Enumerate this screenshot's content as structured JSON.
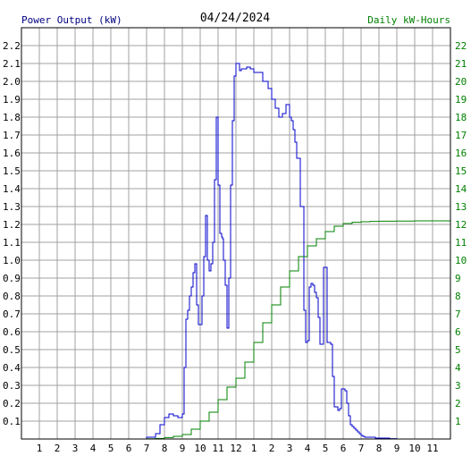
{
  "chart_data": {
    "type": "line",
    "title": "04/24/2024",
    "left_axis_label": "Power Output (kW)",
    "right_axis_label": "Daily kW-Hours",
    "x_ticks": [
      "1",
      "2",
      "3",
      "4",
      "5",
      "6",
      "7",
      "8",
      "9",
      "10",
      "11",
      "12",
      "1",
      "2",
      "3",
      "4",
      "5",
      "6",
      "7",
      "8",
      "9",
      "10",
      "11"
    ],
    "left_ticks": [
      "0.1",
      "0.2",
      "0.3",
      "0.4",
      "0.5",
      "0.6",
      "0.7",
      "0.8",
      "0.9",
      "1.0",
      "1.1",
      "1.2",
      "1.3",
      "1.4",
      "1.5",
      "1.6",
      "1.7",
      "1.8",
      "1.9",
      "2.0",
      "2.1",
      "2.2"
    ],
    "right_ticks": [
      "1",
      "2",
      "3",
      "4",
      "5",
      "6",
      "7",
      "8",
      "9",
      "10",
      "11",
      "12",
      "13",
      "14",
      "15",
      "16",
      "17",
      "18",
      "19",
      "20",
      "21",
      "22"
    ],
    "x_range_hours": [
      0,
      24
    ],
    "left_ylim": [
      0,
      2.3
    ],
    "right_ylim": [
      0,
      23
    ],
    "grid": true,
    "colors": {
      "power": "#0000cc",
      "energy": "#008000",
      "grid": "#a0a0a0",
      "left_text": "#000080",
      "right_text": "#008000"
    },
    "series": [
      {
        "name": "Power Output (kW)",
        "axis": "left",
        "x_hours": [
          0,
          6.7,
          7.0,
          7.5,
          7.75,
          8.0,
          8.25,
          8.5,
          8.75,
          9.0,
          9.1,
          9.2,
          9.3,
          9.4,
          9.5,
          9.6,
          9.7,
          9.8,
          9.9,
          10.0,
          10.1,
          10.2,
          10.3,
          10.4,
          10.5,
          10.6,
          10.7,
          10.8,
          10.9,
          11.0,
          11.1,
          11.2,
          11.25,
          11.3,
          11.4,
          11.5,
          11.6,
          11.7,
          11.8,
          11.9,
          12.0,
          12.1,
          12.2,
          12.3,
          12.4,
          12.5,
          12.6,
          12.8,
          13.0,
          13.5,
          13.8,
          14.0,
          14.2,
          14.4,
          14.6,
          14.8,
          15.0,
          15.1,
          15.2,
          15.3,
          15.4,
          15.6,
          15.8,
          15.9,
          16.0,
          16.1,
          16.2,
          16.3,
          16.4,
          16.5,
          16.6,
          16.7,
          16.8,
          16.9,
          17.0,
          17.1,
          17.2,
          17.3,
          17.4,
          17.5,
          17.6,
          17.7,
          17.8,
          17.9,
          18.0,
          18.1,
          18.2,
          18.3,
          18.4,
          18.5,
          18.6,
          18.7,
          18.8,
          18.9,
          19.0,
          19.1,
          19.2,
          19.4,
          19.6,
          19.8,
          20.0,
          20.3,
          20.6,
          21.0,
          21.3,
          21.6,
          22.0,
          24
        ],
        "values": [
          0,
          0.0,
          0.01,
          0.03,
          0.08,
          0.12,
          0.14,
          0.13,
          0.12,
          0.14,
          0.4,
          0.67,
          0.72,
          0.8,
          0.85,
          0.93,
          0.98,
          0.75,
          0.64,
          0.64,
          0.8,
          1.02,
          1.25,
          1.0,
          0.94,
          0.98,
          1.1,
          1.45,
          1.8,
          1.42,
          1.15,
          1.13,
          1.12,
          1.0,
          0.86,
          0.62,
          0.9,
          1.42,
          1.78,
          2.03,
          2.1,
          2.1,
          2.06,
          2.07,
          2.07,
          2.07,
          2.08,
          2.07,
          2.05,
          2.0,
          1.96,
          1.9,
          1.85,
          1.8,
          1.82,
          1.87,
          1.8,
          1.78,
          1.73,
          1.66,
          1.57,
          1.3,
          0.72,
          0.54,
          0.55,
          0.85,
          0.87,
          0.86,
          0.82,
          0.79,
          0.68,
          0.53,
          0.53,
          0.96,
          0.96,
          0.54,
          0.54,
          0.53,
          0.35,
          0.18,
          0.18,
          0.16,
          0.17,
          0.28,
          0.28,
          0.27,
          0.2,
          0.13,
          0.08,
          0.07,
          0.06,
          0.05,
          0.04,
          0.03,
          0.02,
          0.015,
          0.01,
          0.01,
          0.01,
          0.005,
          0.005,
          0.005,
          0.002,
          0.0,
          0.0,
          0.0,
          0.0,
          0.0
        ]
      },
      {
        "name": "Daily kW-Hours",
        "axis": "right",
        "x_hours": [
          0,
          6.5,
          7.0,
          7.5,
          8.0,
          8.5,
          9.0,
          9.5,
          10.0,
          10.5,
          11.0,
          11.5,
          12.0,
          12.5,
          13.0,
          13.5,
          14.0,
          14.5,
          15.0,
          15.5,
          16.0,
          16.5,
          17.0,
          17.5,
          18.0,
          18.5,
          19.0,
          19.5,
          20.0,
          21.0,
          22.0,
          23.0,
          24
        ],
        "values": [
          0,
          0.0,
          0.01,
          0.03,
          0.08,
          0.15,
          0.25,
          0.55,
          1.0,
          1.5,
          2.2,
          2.9,
          3.4,
          4.3,
          5.4,
          6.5,
          7.5,
          8.5,
          9.4,
          10.2,
          10.8,
          11.2,
          11.6,
          11.9,
          12.05,
          12.12,
          12.15,
          12.17,
          12.18,
          12.19,
          12.2,
          12.2,
          12.2
        ]
      }
    ]
  }
}
